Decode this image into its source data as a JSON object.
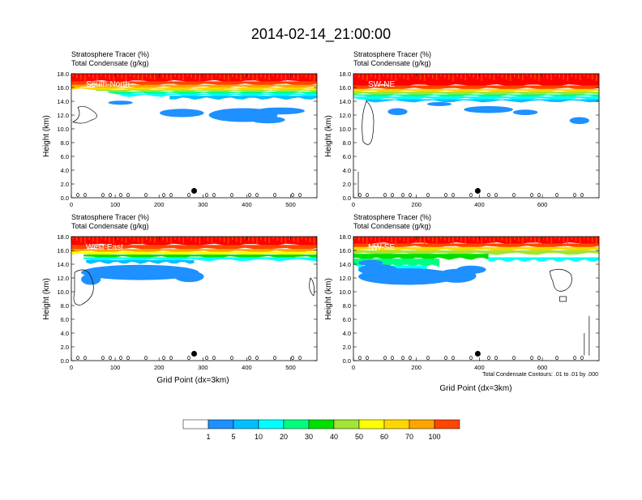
{
  "title": "2014-02-14_21:00:00",
  "colors": {
    "levels": [
      "#ffffff",
      "#1e90ff",
      "#00bfff",
      "#00ffff",
      "#00ff7f",
      "#00e000",
      "#a0e632",
      "#ffff00",
      "#ffd700",
      "#ffa500",
      "#ff4500",
      "#ff0000"
    ],
    "contour": "#000000"
  },
  "colorbar": {
    "labels": [
      "1",
      "5",
      "10",
      "20",
      "30",
      "40",
      "50",
      "60",
      "70",
      "100"
    ]
  },
  "footnote": "Total Condensate Contours: .01 to .01 by .000",
  "chart_data": [
    {
      "type": "heatmap",
      "panel_label": "South-North",
      "header_line1": "Stratosphere Tracer   (%)",
      "header_line2": "Total Condensate   (g/kg)",
      "ylabel": "Height (km)",
      "xlabel": "",
      "x_range": [
        0,
        560
      ],
      "y_range": [
        0,
        18
      ],
      "x_ticks": [
        "0",
        "100",
        "200",
        "300",
        "400",
        "500"
      ],
      "x_tick_values": [
        0,
        100,
        200,
        300,
        400,
        500
      ],
      "y_ticks": [
        "0.0",
        "2.0",
        "4.0",
        "6.0",
        "8.0",
        "10.0",
        "12.0",
        "14.0",
        "16.0",
        "18.0"
      ],
      "tracer_top_km": 18.0,
      "tracer_base_km": 15.8,
      "blue_layer_km": [
        11.0,
        14.5
      ],
      "dot": {
        "x": 280,
        "y": 1.0
      }
    },
    {
      "type": "heatmap",
      "panel_label": "SW-NE",
      "header_line1": "Stratosphere Tracer   (%)",
      "header_line2": "Total Condensate   (g/kg)",
      "ylabel": "Height (km)",
      "xlabel": "",
      "x_range": [
        0,
        780
      ],
      "y_range": [
        0,
        18
      ],
      "x_ticks": [
        "0",
        "200",
        "400",
        "600"
      ],
      "x_tick_values": [
        0,
        200,
        400,
        600
      ],
      "y_ticks": [
        "0.0",
        "2.0",
        "4.0",
        "6.0",
        "8.0",
        "10.0",
        "12.0",
        "14.0",
        "16.0",
        "18.0"
      ],
      "tracer_top_km": 18.0,
      "tracer_base_km": 14.5,
      "blue_layer_km": [
        10.5,
        13.5
      ],
      "dot": {
        "x": 395,
        "y": 1.0
      }
    },
    {
      "type": "heatmap",
      "panel_label": "West-East",
      "header_line1": "Stratosphere Tracer   (%)",
      "header_line2": "Total Condensate   (g/kg)",
      "ylabel": "Height (km)",
      "xlabel": "Grid Point (dx=3km)",
      "x_range": [
        0,
        560
      ],
      "y_range": [
        0,
        18
      ],
      "x_ticks": [
        "0",
        "100",
        "200",
        "300",
        "400",
        "500"
      ],
      "x_tick_values": [
        0,
        100,
        200,
        300,
        400,
        500
      ],
      "y_ticks": [
        "0.0",
        "2.0",
        "4.0",
        "6.0",
        "8.0",
        "10.0",
        "12.0",
        "14.0",
        "16.0",
        "18.0"
      ],
      "tracer_top_km": 18.0,
      "tracer_base_km": 15.0,
      "blue_layer_km": [
        11.2,
        13.8
      ],
      "dot": {
        "x": 280,
        "y": 1.0
      }
    },
    {
      "type": "heatmap",
      "panel_label": "NW-SE",
      "header_line1": "Stratosphere Tracer   (%)",
      "header_line2": "Total Condensate   (g/kg)",
      "ylabel": "Height (km)",
      "xlabel": "Grid Point (dx=3km)",
      "x_range": [
        0,
        780
      ],
      "y_range": [
        0,
        18
      ],
      "x_ticks": [
        "0",
        "200",
        "400",
        "600"
      ],
      "x_tick_values": [
        0,
        200,
        400,
        600
      ],
      "y_ticks": [
        "0.0",
        "2.0",
        "4.0",
        "6.0",
        "8.0",
        "10.0",
        "12.0",
        "14.0",
        "16.0",
        "18.0"
      ],
      "tracer_top_km": 18.0,
      "tracer_base_km": 13.0,
      "blue_layer_km": [
        10.6,
        13.5
      ],
      "dot": {
        "x": 395,
        "y": 1.0
      }
    }
  ]
}
